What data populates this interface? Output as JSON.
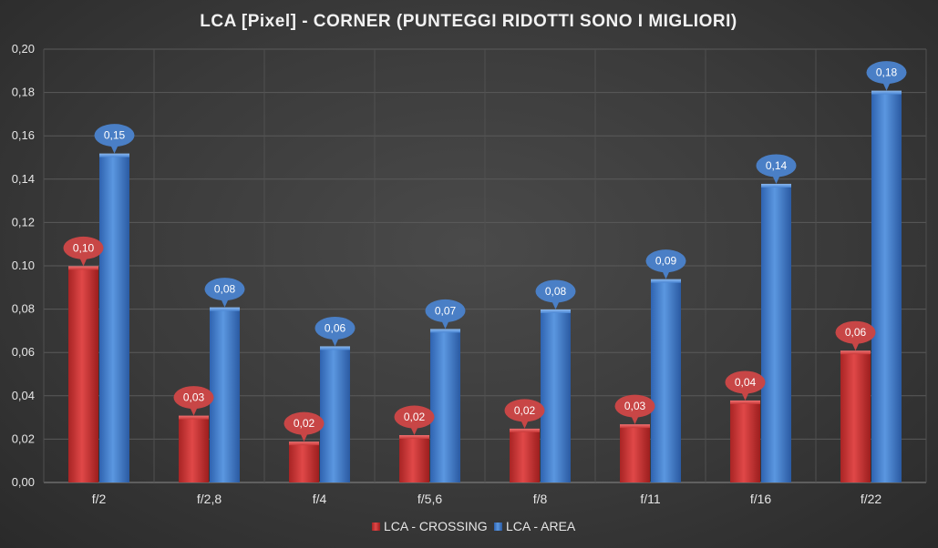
{
  "colors": {
    "crossing": "#d23c3c",
    "crossing_dark": "#8e1a1a",
    "crossing_callout": "#c84646",
    "area": "#4a86d4",
    "area_dark": "#1e4f96",
    "area_callout": "#4a7fc6"
  },
  "chart_data": {
    "type": "bar",
    "title": "LCA [Pixel] - CORNER (PUNTEGGI RIDOTTI SONO I MIGLIORI)",
    "xlabel": "",
    "ylabel": "",
    "ylim": [
      0,
      0.2
    ],
    "yticks": [
      0,
      0.02,
      0.04,
      0.06,
      0.08,
      0.1,
      0.12,
      0.14,
      0.16,
      0.18,
      0.2
    ],
    "ytick_labels": [
      "0,00",
      "0,02",
      "0,04",
      "0,06",
      "0,08",
      "0.10",
      "0,12",
      "0,14",
      "0,16",
      "0,18",
      "0,20"
    ],
    "grid": true,
    "legend_position": "bottom",
    "categories": [
      "f/2",
      "f/2,8",
      "f/4",
      "f/5,6",
      "f/8",
      "f/11",
      "f/16",
      "f/22"
    ],
    "series": [
      {
        "name": "LCA - CROSSING",
        "values": [
          0.099,
          0.03,
          0.018,
          0.021,
          0.024,
          0.026,
          0.037,
          0.06
        ],
        "labels": [
          "0,10",
          "0,03",
          "0,02",
          "0,02",
          "0,02",
          "0,03",
          "0,04",
          "0,06"
        ]
      },
      {
        "name": "LCA - AREA",
        "values": [
          0.151,
          0.08,
          0.062,
          0.07,
          0.079,
          0.093,
          0.137,
          0.18
        ],
        "labels": [
          "0,15",
          "0,08",
          "0,06",
          "0,07",
          "0,08",
          "0,09",
          "0,14",
          "0,18"
        ]
      }
    ]
  }
}
